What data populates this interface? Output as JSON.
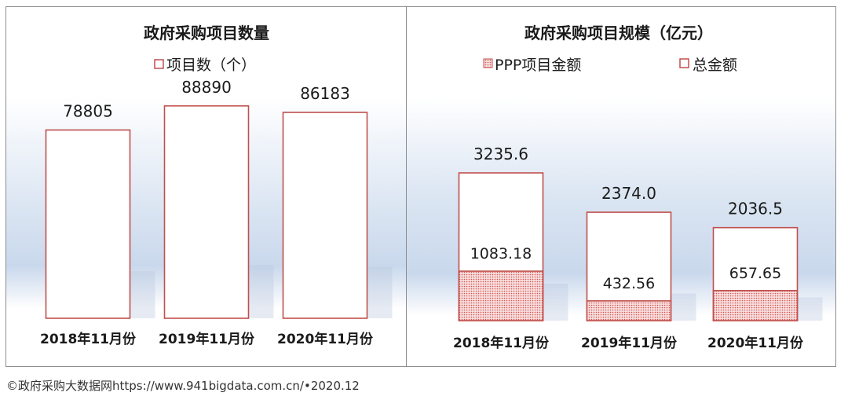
{
  "chart_data": [
    {
      "type": "bar",
      "title": "政府采购项目数量",
      "legend": [
        "项目数（个）"
      ],
      "legend_placement": "top",
      "categories": [
        "2018年11月份",
        "2019年11月份",
        "2020年11月份"
      ],
      "series": [
        {
          "name": "项目数（个）",
          "values": [
            78805,
            88890,
            86183
          ]
        }
      ],
      "value_labels": [
        "78805",
        "88890",
        "86183"
      ],
      "ylim": [
        0,
        100000
      ],
      "grid": false
    },
    {
      "type": "bar",
      "title": "政府采购项目规模（亿元）",
      "legend": [
        "PPP项目金额",
        "总金额"
      ],
      "legend_placement": "top",
      "categories": [
        "2018年11月份",
        "2019年11月份",
        "2020年11月份"
      ],
      "series": [
        {
          "name": "PPP项目金额",
          "values": [
            1083.18,
            432.56,
            657.65
          ]
        },
        {
          "name": "总金额",
          "values": [
            3235.6,
            2374.0,
            2036.5
          ]
        }
      ],
      "value_labels_total": [
        "3235.6",
        "2374.0",
        "2036.5"
      ],
      "value_labels_ppp": [
        "1083.18",
        "432.56",
        "657.65"
      ],
      "ylim": [
        0,
        5500
      ],
      "grid": false
    }
  ],
  "colors": {
    "bar_border": "#c0504d",
    "bar_fill": "#ffffff",
    "ppp_dot": "#d9534f",
    "frame": "#8c8c8c"
  },
  "footer": "©政府采购大数据网https://www.941bigdata.com.cn/•2020.12"
}
